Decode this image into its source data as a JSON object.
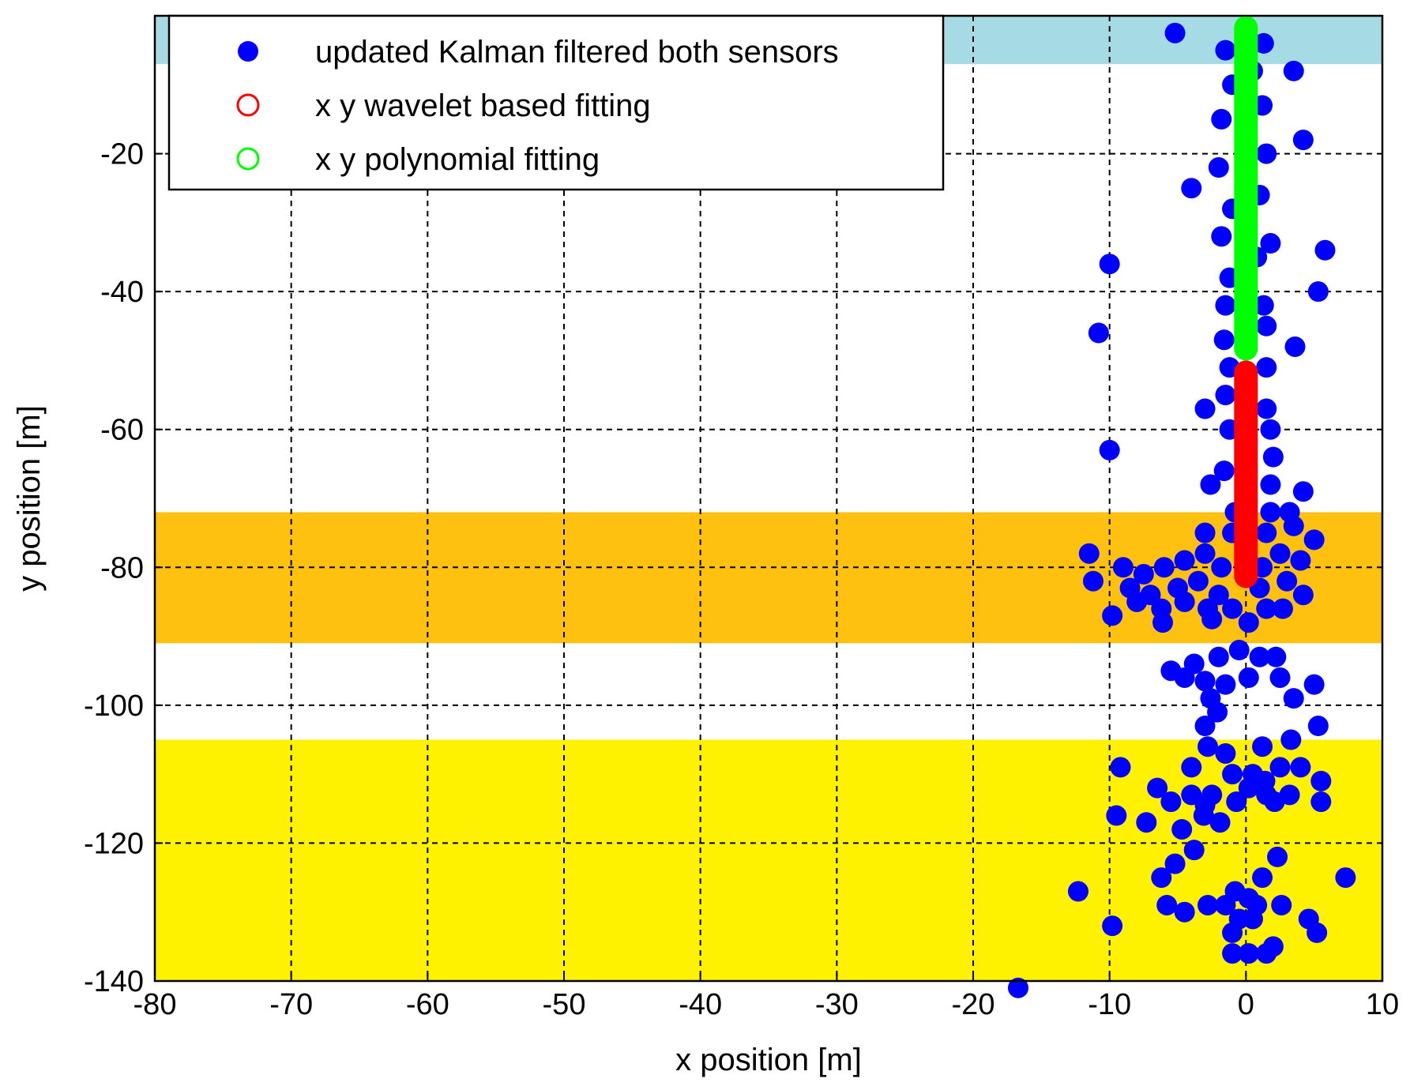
{
  "chart_data": {
    "type": "scatter",
    "title": "",
    "xlabel": "x position [m]",
    "ylabel": "y position [m]",
    "xlim": [
      -80,
      10
    ],
    "ylim": [
      -140,
      0
    ],
    "xticks": [
      -80,
      -70,
      -60,
      -50,
      -40,
      -30,
      -20,
      -10,
      0,
      10
    ],
    "yticks": [
      -20,
      -40,
      -60,
      -80,
      -100,
      -120,
      -140
    ],
    "grid": true,
    "legend_position": "top-left",
    "bands": [
      {
        "name": "top-band",
        "y_from": -7,
        "y_to": 0,
        "color": "#a6dbe5"
      },
      {
        "name": "middle-band",
        "y_from": -91,
        "y_to": -72,
        "color": "#fec10f"
      },
      {
        "name": "bottom-band",
        "y_from": -140,
        "y_to": -105,
        "color": "#fff200"
      }
    ],
    "legend": [
      {
        "label": "updated Kalman filtered both sensors",
        "marker": "filled-circle",
        "color": "#0000ff"
      },
      {
        "label": "x y wavelet based fitting",
        "marker": "open-circle",
        "color": "#ff0000"
      },
      {
        "label": "x y polynomial fitting",
        "marker": "open-circle",
        "color": "#00ff00"
      }
    ],
    "series": [
      {
        "name": "updated Kalman filtered both sensors",
        "color": "#0000ff",
        "points": [
          [
            -5.2,
            -2.5
          ],
          [
            -1.5,
            -5
          ],
          [
            -1,
            -10
          ],
          [
            0.5,
            -8
          ],
          [
            1.3,
            -4
          ],
          [
            3.5,
            -8
          ],
          [
            -1.8,
            -15
          ],
          [
            1.2,
            -13
          ],
          [
            4.2,
            -18
          ],
          [
            -2,
            -22
          ],
          [
            1.5,
            -20
          ],
          [
            -4,
            -25
          ],
          [
            -1,
            -28
          ],
          [
            1,
            -26
          ],
          [
            -1.8,
            -32
          ],
          [
            0.8,
            -35
          ],
          [
            1.8,
            -33
          ],
          [
            5.8,
            -34
          ],
          [
            -10,
            -36
          ],
          [
            5.3,
            -40
          ],
          [
            -1.2,
            -38
          ],
          [
            -1.5,
            -42
          ],
          [
            1.3,
            -42
          ],
          [
            -1.6,
            -47
          ],
          [
            1.5,
            -45
          ],
          [
            -10.8,
            -46
          ],
          [
            3.6,
            -48
          ],
          [
            -1.2,
            -51
          ],
          [
            1.5,
            -51
          ],
          [
            -1.5,
            -55
          ],
          [
            1.5,
            -57
          ],
          [
            -3,
            -57
          ],
          [
            -1.2,
            -60
          ],
          [
            1.8,
            -60
          ],
          [
            -10,
            -63
          ],
          [
            2,
            -64
          ],
          [
            -1.6,
            -66
          ],
          [
            1.8,
            -68
          ],
          [
            -2.6,
            -68
          ],
          [
            4.2,
            -69
          ],
          [
            -0.8,
            -72
          ],
          [
            1.8,
            -72
          ],
          [
            3.2,
            -72
          ],
          [
            -3,
            -75
          ],
          [
            -1,
            -75
          ],
          [
            1.5,
            -75
          ],
          [
            3.5,
            -74
          ],
          [
            5,
            -76
          ],
          [
            -11.5,
            -78
          ],
          [
            -9,
            -80
          ],
          [
            -7.5,
            -81
          ],
          [
            -6,
            -80
          ],
          [
            -4.5,
            -79
          ],
          [
            -3,
            -78
          ],
          [
            -1.8,
            -80
          ],
          [
            1.2,
            -80
          ],
          [
            2.5,
            -78
          ],
          [
            4,
            -79
          ],
          [
            -11.2,
            -82
          ],
          [
            -8.5,
            -83
          ],
          [
            -7,
            -84
          ],
          [
            -5,
            -83
          ],
          [
            -3.5,
            -82
          ],
          [
            -2,
            -84
          ],
          [
            1,
            -83
          ],
          [
            3,
            -82
          ],
          [
            4.2,
            -84
          ],
          [
            -8,
            -85
          ],
          [
            -6.2,
            -86
          ],
          [
            -4.5,
            -85
          ],
          [
            -2.8,
            -86
          ],
          [
            -1,
            -86
          ],
          [
            1.5,
            -86
          ],
          [
            2.7,
            -86
          ],
          [
            -9.8,
            -87
          ],
          [
            -6.1,
            -88
          ],
          [
            -2.5,
            -87.5
          ],
          [
            0.2,
            -88
          ],
          [
            -5.5,
            -95
          ],
          [
            -3.8,
            -94
          ],
          [
            -2,
            -93
          ],
          [
            -0.5,
            -92
          ],
          [
            1,
            -93
          ],
          [
            2.2,
            -93
          ],
          [
            -4.5,
            -96
          ],
          [
            -3,
            -96.5
          ],
          [
            -1.5,
            -97
          ],
          [
            0.2,
            -96
          ],
          [
            2.5,
            -96
          ],
          [
            -2.6,
            -99
          ],
          [
            -2.1,
            -101
          ],
          [
            5,
            -97
          ],
          [
            3.5,
            -99
          ],
          [
            -3,
            -103
          ],
          [
            -2.8,
            -106
          ],
          [
            1.2,
            -106
          ],
          [
            5.3,
            -103
          ],
          [
            3.3,
            -105
          ],
          [
            -1.5,
            -107
          ],
          [
            -9.2,
            -109
          ],
          [
            -4,
            -109
          ],
          [
            2.5,
            -109
          ],
          [
            4,
            -109
          ],
          [
            -1,
            -110
          ],
          [
            0.5,
            -110
          ],
          [
            1.4,
            -111
          ],
          [
            5.5,
            -111
          ],
          [
            -6.5,
            -112
          ],
          [
            -4,
            -113
          ],
          [
            -2.5,
            -113
          ],
          [
            0.2,
            -112
          ],
          [
            1.5,
            -113
          ],
          [
            3.2,
            -113
          ],
          [
            -5.5,
            -114
          ],
          [
            -3,
            -114.5
          ],
          [
            -0.7,
            -114
          ],
          [
            2.1,
            -114
          ],
          [
            5.5,
            -114
          ],
          [
            -9.5,
            -116
          ],
          [
            -7.3,
            -117
          ],
          [
            -3.1,
            -116
          ],
          [
            -1.9,
            -117
          ],
          [
            -4.7,
            -118
          ],
          [
            -3.8,
            -121
          ],
          [
            2.3,
            -122
          ],
          [
            -5.2,
            -123
          ],
          [
            1.2,
            -125
          ],
          [
            -6.2,
            -125
          ],
          [
            -0.8,
            -127
          ],
          [
            0.2,
            -128
          ],
          [
            -1.5,
            -129
          ],
          [
            0.8,
            -129
          ],
          [
            -2.8,
            -129
          ],
          [
            2.6,
            -129
          ],
          [
            -5.8,
            -129
          ],
          [
            -4.5,
            -130
          ],
          [
            7.3,
            -125
          ],
          [
            -12.3,
            -127
          ],
          [
            -0.5,
            -131
          ],
          [
            0.5,
            -131
          ],
          [
            4.6,
            -131
          ],
          [
            -9.8,
            -132
          ],
          [
            -1,
            -133
          ],
          [
            5.2,
            -133
          ],
          [
            -1,
            -136
          ],
          [
            0.2,
            -136
          ],
          [
            1.5,
            -136
          ],
          [
            2,
            -135
          ],
          [
            -16.7,
            -141
          ]
        ]
      },
      {
        "name": "x y wavelet based fitting",
        "color": "#ff0000",
        "x": 0,
        "y_from": -83,
        "y_to": -50
      },
      {
        "name": "x y polynomial fitting",
        "color": "#00ff00",
        "x": 0,
        "y_from": -50,
        "y_to": 0
      }
    ]
  }
}
